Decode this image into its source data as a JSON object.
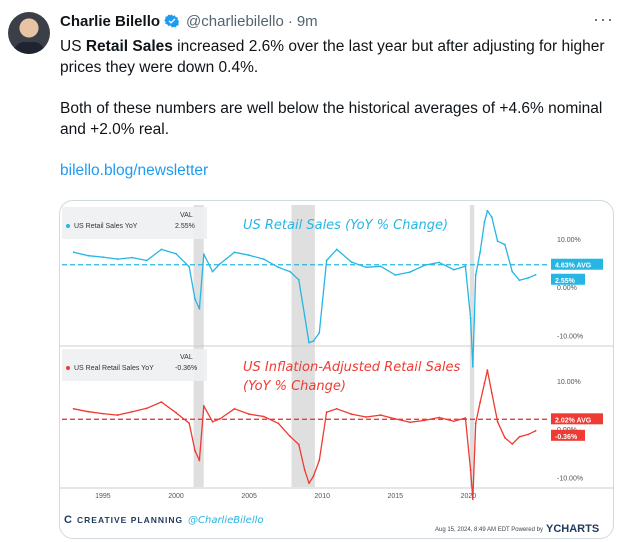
{
  "tweet": {
    "author_name": "Charlie Bilello",
    "handle": "@charliebilello",
    "separator": "·",
    "time": "9m",
    "more": "···",
    "text_p1_a": "US ",
    "text_p1_bold": "Retail Sales",
    "text_p1_b": " increased 2.6% over the last year but after adjusting for higher prices they were down 0.4%.",
    "text_p2": "Both of these numbers are well below the historical averages of +4.6% nominal and +2.0% real.",
    "link": "bilello.blog/newsletter"
  },
  "colors": {
    "accent": "#1d9bf0",
    "nominal_series": "#26b6e4",
    "real_series": "#ee3b33",
    "recession_band": "#d9d9d9"
  },
  "chart_data": [
    {
      "type": "line",
      "title": "US Retail Sales (YoY % Change)",
      "legend": "US Retail Sales YoY",
      "val_header": "VAL",
      "current_value": "2.55%",
      "current_value_num": 2.55,
      "average_label": "4.63% AVG",
      "average": 4.63,
      "ylim": [
        -12,
        17
      ],
      "y_ticks": [
        "10.00%",
        "0.00%",
        "-10.00%"
      ],
      "y_tick_values": [
        10,
        0,
        -10
      ],
      "x": [
        1993,
        1994,
        1995,
        1996,
        1997,
        1998,
        1999,
        2000,
        2000.9,
        2001.3,
        2001.6,
        2001.9,
        2002.5,
        2003,
        2004,
        2005,
        2006,
        2007,
        2007.8,
        2008.4,
        2008.8,
        2009.1,
        2009.4,
        2009.8,
        2010.3,
        2011,
        2012,
        2013,
        2014,
        2015,
        2016,
        2017,
        2018,
        2019,
        2019.8,
        2020.15,
        2020.3,
        2020.5,
        2020.8,
        2021.1,
        2021.3,
        2021.6,
        2022,
        2022.5,
        2023,
        2023.5,
        2024.1,
        2024.6
      ],
      "values": [
        7.2,
        6.5,
        6.2,
        5.8,
        6.1,
        5.5,
        7.8,
        6.9,
        4.2,
        -2.5,
        -4.5,
        6.8,
        3.2,
        4.8,
        7.2,
        6.6,
        5.8,
        4.1,
        3.2,
        1.5,
        -6,
        -11.5,
        -11.2,
        -9.5,
        5.5,
        7.8,
        5.2,
        4.1,
        4.3,
        2.5,
        3.1,
        4.5,
        5.1,
        3.6,
        4.3,
        -6.5,
        -16.5,
        2.5,
        7.2,
        13.5,
        15.8,
        14.5,
        9.5,
        8.8,
        3.2,
        1.4,
        1.9,
        2.55
      ]
    },
    {
      "type": "line",
      "title": "US Inflation-Adjusted Retail Sales",
      "subtitle": "(YoY % Change)",
      "legend": "US Real Retail Sales YoY",
      "val_header": "VAL",
      "current_value": "-0.36%",
      "current_value_num": -0.36,
      "average_label": "2.02% AVG",
      "average": 2.02,
      "ylim": [
        -12,
        17
      ],
      "y_ticks": [
        "10.00%",
        "0.00%",
        "-10.00%"
      ],
      "y_tick_values": [
        10,
        0,
        -10
      ],
      "x": [
        1993,
        1994,
        1995,
        1996,
        1997,
        1998,
        1999,
        2000,
        2000.9,
        2001.3,
        2001.6,
        2001.9,
        2002.5,
        2003,
        2004,
        2005,
        2006,
        2007,
        2007.8,
        2008.4,
        2008.8,
        2009.1,
        2009.4,
        2009.8,
        2010.3,
        2011,
        2012,
        2013,
        2014,
        2015,
        2016,
        2017,
        2018,
        2019,
        2019.8,
        2020.15,
        2020.3,
        2020.5,
        2020.8,
        2021.1,
        2021.3,
        2021.6,
        2022,
        2022.5,
        2023,
        2023.5,
        2024.1,
        2024.6
      ],
      "values": [
        4.2,
        3.6,
        3.2,
        2.9,
        3.6,
        4.3,
        5.6,
        3.4,
        1.2,
        -4.5,
        -6.5,
        4.8,
        1.5,
        2.1,
        4.2,
        3.1,
        2.6,
        1.2,
        -1.5,
        -3.2,
        -8.5,
        -11.2,
        -9.8,
        -6.5,
        3.5,
        4.2,
        3.1,
        2.5,
        2.9,
        2.1,
        1.4,
        1.8,
        2.4,
        1.6,
        2.3,
        -8.5,
        -14.5,
        1.2,
        5.5,
        9.5,
        12.2,
        7.5,
        1.5,
        -1.8,
        -3.1,
        -1.6,
        -1.1,
        -0.36
      ]
    }
  ],
  "x_axis": {
    "ticks": [
      "1995",
      "2000",
      "2005",
      "2010",
      "2015",
      "2020"
    ],
    "tick_values": [
      1995,
      2000,
      2005,
      2010,
      2015,
      2020
    ],
    "xlim": [
      1992.2,
      2024.9
    ]
  },
  "recessions": [
    [
      2001.2,
      2001.9
    ],
    [
      2007.9,
      2009.5
    ],
    [
      2020.1,
      2020.4
    ]
  ],
  "footer": {
    "brand": "CREATIVE PLANNING",
    "handle": "@CharlieBilello",
    "date_source": "Aug 15, 2024, 8:49 AM EDT Powered by",
    "ycharts": "YCHARTS"
  }
}
